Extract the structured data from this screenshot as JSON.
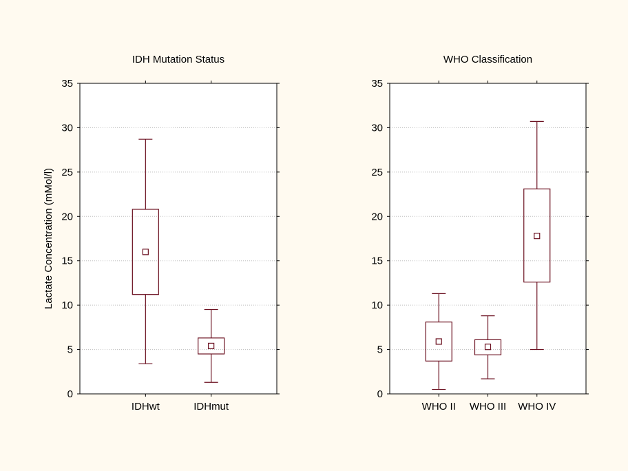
{
  "colors": {
    "background": "#fffaf0",
    "plot_background": "#ffffff",
    "box_stroke": "#6b1020",
    "grid": "#bdbdbd",
    "axis": "#000000"
  },
  "chart_data": [
    {
      "type": "box",
      "title": "IDH Mutation Status",
      "ylabel": "Lactate Concentration (mMol/l)",
      "xlabel": "",
      "ylim": [
        0,
        35
      ],
      "yticks": [
        0,
        5,
        10,
        15,
        20,
        25,
        30,
        35
      ],
      "grid": true,
      "categories": [
        "IDHwt",
        "IDHmut"
      ],
      "series": [
        {
          "category": "IDHwt",
          "whisker_low": 3.4,
          "q1": 11.2,
          "center": 16.0,
          "q3": 20.8,
          "whisker_high": 28.7
        },
        {
          "category": "IDHmut",
          "whisker_low": 1.3,
          "q1": 4.5,
          "center": 5.4,
          "q3": 6.3,
          "whisker_high": 9.5
        }
      ]
    },
    {
      "type": "box",
      "title": "WHO Classification",
      "ylabel": "",
      "xlabel": "",
      "ylim": [
        0,
        35
      ],
      "yticks": [
        0,
        5,
        10,
        15,
        20,
        25,
        30,
        35
      ],
      "grid": true,
      "categories": [
        "WHO II",
        "WHO III",
        "WHO IV"
      ],
      "series": [
        {
          "category": "WHO II",
          "whisker_low": 0.5,
          "q1": 3.7,
          "center": 5.9,
          "q3": 8.1,
          "whisker_high": 11.3
        },
        {
          "category": "WHO III",
          "whisker_low": 1.7,
          "q1": 4.4,
          "center": 5.3,
          "q3": 6.1,
          "whisker_high": 8.8
        },
        {
          "category": "WHO IV",
          "whisker_low": 5.0,
          "q1": 12.6,
          "center": 17.8,
          "q3": 23.1,
          "whisker_high": 30.7
        }
      ]
    }
  ]
}
